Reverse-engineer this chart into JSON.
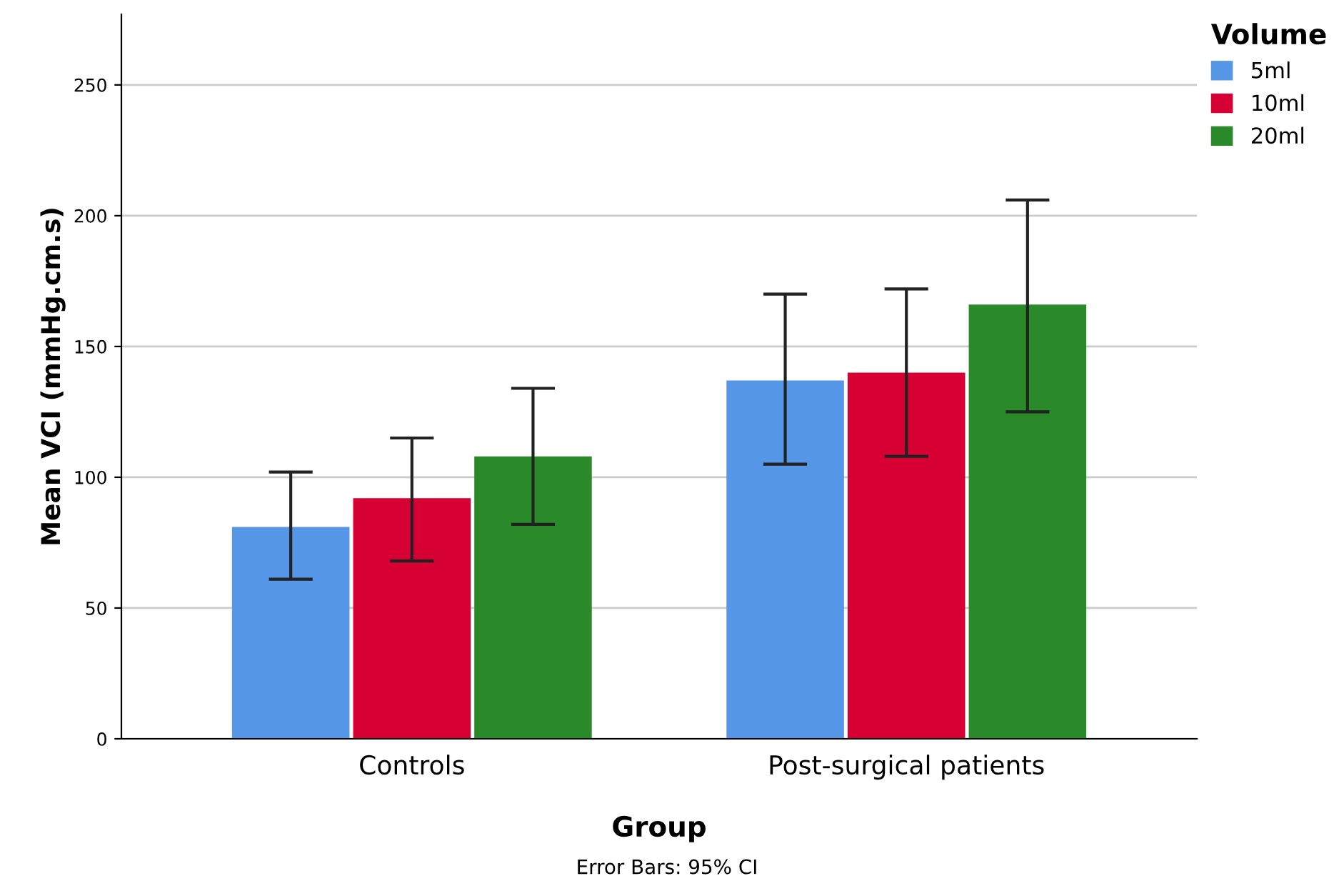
{
  "chart_data": {
    "type": "bar",
    "xlabel": "Group",
    "ylabel": "Mean VCI (mmHg.cm.s)",
    "legend_title": "Volume",
    "categories": [
      "Controls",
      "Post-surgical patients"
    ],
    "series": [
      {
        "name": "5ml",
        "color": "#5596e6",
        "values": [
          81,
          137
        ],
        "errors": [
          [
            61,
            102
          ],
          [
            105,
            170
          ]
        ]
      },
      {
        "name": "10ml",
        "color": "#d60032",
        "values": [
          92,
          140
        ],
        "errors": [
          [
            68,
            115
          ],
          [
            108,
            172
          ]
        ]
      },
      {
        "name": "20ml",
        "color": "#2a8a2a",
        "values": [
          108,
          166
        ],
        "errors": [
          [
            82,
            134
          ],
          [
            125,
            206
          ]
        ]
      }
    ],
    "ylim": [
      0,
      277
    ],
    "yticks": [
      0,
      50,
      100,
      150,
      200,
      250
    ],
    "grid": "y",
    "legend": "top right",
    "annotations": [
      "Error Bars: 95% CI"
    ]
  }
}
